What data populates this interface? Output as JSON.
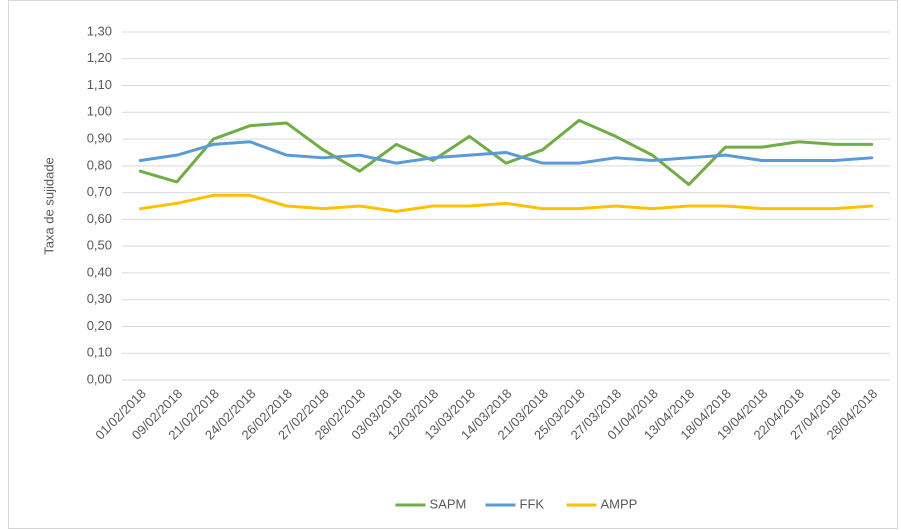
{
  "chart_data": {
    "type": "line",
    "y_label": "Taxa de sujidade",
    "categories": [
      "01/02/2018",
      "09/02/2018",
      "21/02/2018",
      "24/02/2018",
      "26/02/2018",
      "27/02/2018",
      "28/02/2018",
      "03/03/2018",
      "12/03/2018",
      "13/03/2018",
      "14/03/2018",
      "21/03/2018",
      "25/03/2018",
      "27/03/2018",
      "01/04/2018",
      "13/04/2018",
      "18/04/2018",
      "19/04/2018",
      "22/04/2018",
      "27/04/2018",
      "28/04/2018"
    ],
    "series": [
      {
        "name": "SAPM",
        "color": "#70ad47",
        "values": [
          0.78,
          0.74,
          0.9,
          0.95,
          0.96,
          0.86,
          0.78,
          0.88,
          0.82,
          0.91,
          0.81,
          0.86,
          0.97,
          0.91,
          0.84,
          0.73,
          0.87,
          0.87,
          0.89,
          0.88,
          0.88
        ]
      },
      {
        "name": "FFK",
        "color": "#5b9bd5",
        "values": [
          0.82,
          0.84,
          0.88,
          0.89,
          0.84,
          0.83,
          0.84,
          0.81,
          0.83,
          0.84,
          0.85,
          0.81,
          0.81,
          0.83,
          0.82,
          0.83,
          0.84,
          0.82,
          0.82,
          0.82,
          0.83
        ]
      },
      {
        "name": "AMPP",
        "color": "#ffc000",
        "values": [
          0.64,
          0.66,
          0.69,
          0.69,
          0.65,
          0.64,
          0.65,
          0.63,
          0.65,
          0.65,
          0.66,
          0.64,
          0.64,
          0.65,
          0.64,
          0.65,
          0.65,
          0.64,
          0.64,
          0.64,
          0.65
        ]
      }
    ],
    "ylim": [
      0,
      1.3
    ],
    "yticks": [
      {
        "value": 0,
        "label": "0,00"
      },
      {
        "value": 0.1,
        "label": "0,10"
      },
      {
        "value": 0.2,
        "label": "0,20"
      },
      {
        "value": 0.3,
        "label": "0,30"
      },
      {
        "value": 0.4,
        "label": "0,40"
      },
      {
        "value": 0.5,
        "label": "0,50"
      },
      {
        "value": 0.6,
        "label": "0,60"
      },
      {
        "value": 0.7,
        "label": "0,70"
      },
      {
        "value": 0.8,
        "label": "0,80"
      },
      {
        "value": 0.9,
        "label": "0,90"
      },
      {
        "value": 1.0,
        "label": "1,00"
      },
      {
        "value": 1.1,
        "label": "1,10"
      },
      {
        "value": 1.2,
        "label": "1,20"
      },
      {
        "value": 1.3,
        "label": "1,30"
      }
    ],
    "grid": true,
    "legend": "bottom"
  }
}
